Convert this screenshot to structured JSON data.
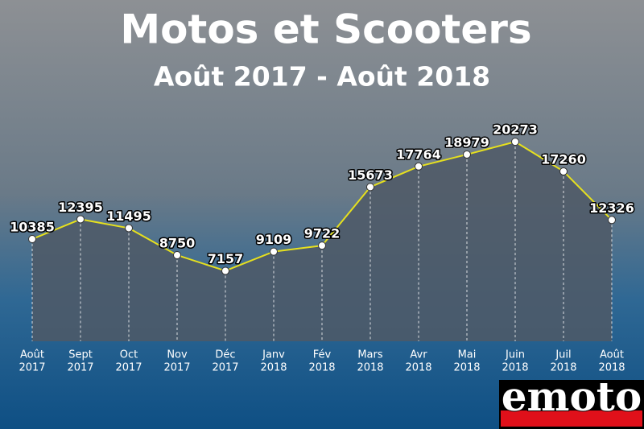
{
  "chart_data": {
    "type": "line",
    "title": "Motos et Scooters",
    "subtitle": "Août 2017 - Août 2018",
    "categories": [
      [
        "Août",
        "2017"
      ],
      [
        "Sept",
        "2017"
      ],
      [
        "Oct",
        "2017"
      ],
      [
        "Nov",
        "2017"
      ],
      [
        "Déc",
        "2017"
      ],
      [
        "Janv",
        "2018"
      ],
      [
        "Fév",
        "2018"
      ],
      [
        "Mars",
        "2018"
      ],
      [
        "Avr",
        "2018"
      ],
      [
        "Mai",
        "2018"
      ],
      [
        "Juin",
        "2018"
      ],
      [
        "Juil",
        "2018"
      ],
      [
        "Août",
        "2018"
      ]
    ],
    "series": [
      {
        "color": "#e6e01e",
        "values": [
          10385,
          12395,
          11495,
          8750,
          7157,
          9109,
          9722,
          15673,
          17764,
          18979,
          20273,
          17260,
          12326
        ]
      }
    ],
    "ylim": [
      0,
      22000
    ]
  },
  "logo": "emoto"
}
